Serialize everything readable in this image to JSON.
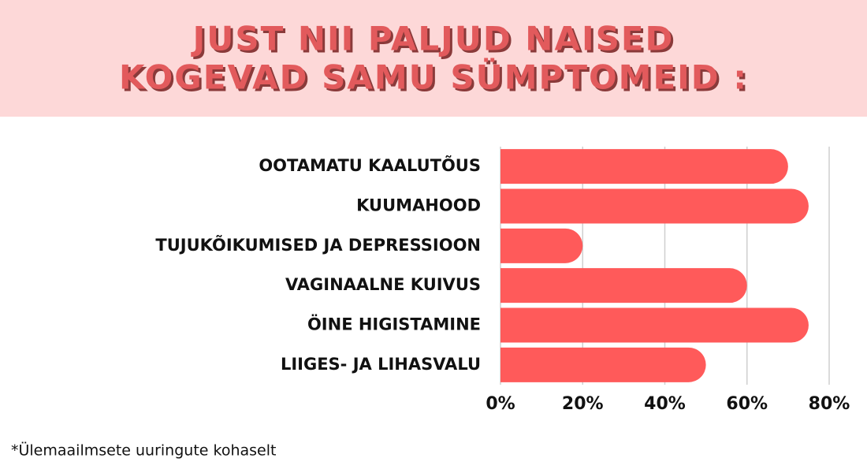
{
  "chart_data": {
    "type": "barh",
    "title": [
      "JUST NII PALJUD NAISED",
      "KOGEVAD SAMU SÜMPTOMEID :"
    ],
    "categories": [
      "OOTAMATU KAALUTÕUS",
      "KUUMAHOOD",
      "TUJUKÕIKUMISED JA DEPRESSIOON",
      "VAGINAALNE KUIVUS",
      "ÖINE HIGISTAMINE",
      "LIIGES- JA LIHASVALU"
    ],
    "values": [
      70,
      75,
      20,
      60,
      75,
      50
    ],
    "color": "#ff5a5a",
    "xlim": [
      0,
      80
    ],
    "xticks": [
      {
        "value": 0,
        "label": "0%"
      },
      {
        "value": 20,
        "label": "20%"
      },
      {
        "value": 40,
        "label": "40%"
      },
      {
        "value": 60,
        "label": "60%"
      },
      {
        "value": 80,
        "label": "80%"
      }
    ],
    "grid": true,
    "footnote": "*Ülemaailmsete uuringute kohaselt"
  }
}
